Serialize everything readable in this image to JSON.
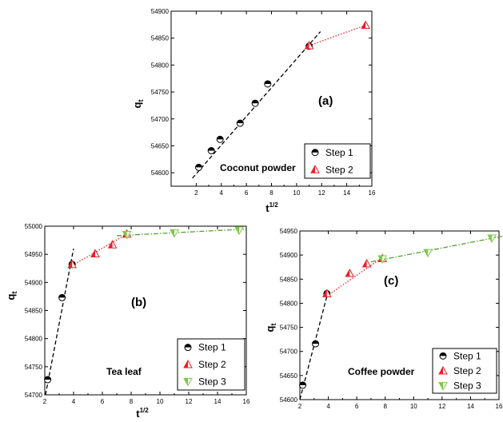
{
  "chart_data": [
    {
      "type": "scatter",
      "id": "a",
      "panel_label": "(a)",
      "sample": "Coconut powder",
      "xlabel": "t",
      "xlabel_sup": "1/2",
      "ylabel": "q",
      "ylabel_sub": "t",
      "xlim": [
        0,
        16
      ],
      "ylim": [
        54575,
        54900
      ],
      "xticks": [
        2,
        4,
        6,
        8,
        10,
        12,
        14,
        16
      ],
      "yticks": [
        54600,
        54650,
        54700,
        54750,
        54800,
        54850,
        54900
      ],
      "legend_position": "bottom-right",
      "series": [
        {
          "name": "Step 1",
          "marker": "half-circle",
          "color": "#000000",
          "x": [
            2.2,
            3.2,
            3.9,
            5.5,
            6.7,
            7.7,
            11.0
          ],
          "y": [
            54610,
            54641,
            54662,
            54692,
            54729,
            54765,
            54835
          ]
        },
        {
          "name": "Step 2",
          "marker": "triangle-up",
          "color": "#e8202a",
          "x": [
            11.0,
            15.5
          ],
          "y": [
            54836,
            54874
          ]
        }
      ],
      "fits": [
        {
          "style": "dash",
          "color": "#000000",
          "x": [
            1.7,
            11.9
          ],
          "y": [
            54590,
            54862
          ]
        },
        {
          "style": "dot",
          "color": "#e8202a",
          "x": [
            11.0,
            15.5
          ],
          "y": [
            54836,
            54874
          ]
        }
      ]
    },
    {
      "type": "scatter",
      "id": "b",
      "panel_label": "(b)",
      "sample": "Tea leaf",
      "xlabel": "t",
      "xlabel_sup": "1/2",
      "ylabel": "q",
      "ylabel_sub": "t",
      "xlim": [
        2,
        16
      ],
      "ylim": [
        54700,
        55000
      ],
      "xticks": [
        2,
        4,
        6,
        8,
        10,
        12,
        14,
        16
      ],
      "yticks": [
        54700,
        54750,
        54800,
        54850,
        54900,
        54950,
        55000
      ],
      "legend_position": "bottom-right",
      "series": [
        {
          "name": "Step 1",
          "marker": "half-circle",
          "color": "#000000",
          "x": [
            2.2,
            3.2,
            3.9
          ],
          "y": [
            54727,
            54873,
            54932
          ]
        },
        {
          "name": "Step 2",
          "marker": "triangle-up",
          "color": "#e8202a",
          "x": [
            3.9,
            5.5,
            6.7,
            7.7
          ],
          "y": [
            54932,
            54951,
            54967,
            54986
          ]
        },
        {
          "name": "Step 3",
          "marker": "triangle-down",
          "color": "#7ac943",
          "x": [
            7.7,
            11.0,
            15.5
          ],
          "y": [
            54985,
            54988,
            54993
          ]
        }
      ],
      "fits": [
        {
          "style": "dash",
          "color": "#000000",
          "x": [
            2.05,
            4.0
          ],
          "y": [
            54700,
            54960
          ]
        },
        {
          "style": "dot",
          "color": "#e8202a",
          "x": [
            3.9,
            7.7
          ],
          "y": [
            54930,
            54986
          ]
        },
        {
          "style": "dashdot",
          "color": "#5a9e32",
          "x": [
            7.0,
            16.0
          ],
          "y": [
            54983,
            54995
          ]
        }
      ]
    },
    {
      "type": "scatter",
      "id": "c",
      "panel_label": "(c)",
      "sample": "Coffee powder",
      "xlabel": "t",
      "xlabel_sup": "1/2",
      "ylabel": "q",
      "ylabel_sub": "t",
      "xlim": [
        2,
        16
      ],
      "ylim": [
        54600,
        54950
      ],
      "xticks": [
        2,
        4,
        6,
        8,
        10,
        12,
        14,
        16
      ],
      "yticks": [
        54600,
        54650,
        54700,
        54750,
        54800,
        54850,
        54900,
        54950
      ],
      "legend_position": "bottom-right",
      "series": [
        {
          "name": "Step 1",
          "marker": "half-circle",
          "color": "#000000",
          "x": [
            2.2,
            3.1,
            3.9
          ],
          "y": [
            54630,
            54716,
            54820
          ]
        },
        {
          "name": "Step 2",
          "marker": "triangle-up",
          "color": "#e8202a",
          "x": [
            3.9,
            5.5,
            6.7,
            7.8
          ],
          "y": [
            54820,
            54862,
            54882,
            54893
          ]
        },
        {
          "name": "Step 3",
          "marker": "triangle-down",
          "color": "#7ac943",
          "x": [
            7.8,
            11.0,
            15.5
          ],
          "y": [
            54892,
            54905,
            54935
          ]
        }
      ],
      "fits": [
        {
          "style": "dash",
          "color": "#000000",
          "x": [
            2.0,
            4.0
          ],
          "y": [
            54600,
            54826
          ]
        },
        {
          "style": "dot",
          "color": "#e8202a",
          "x": [
            3.9,
            7.8
          ],
          "y": [
            54815,
            54895
          ]
        },
        {
          "style": "dashdot",
          "color": "#5a9e32",
          "x": [
            7.0,
            16.4
          ],
          "y": [
            54886,
            54940
          ]
        }
      ]
    }
  ]
}
